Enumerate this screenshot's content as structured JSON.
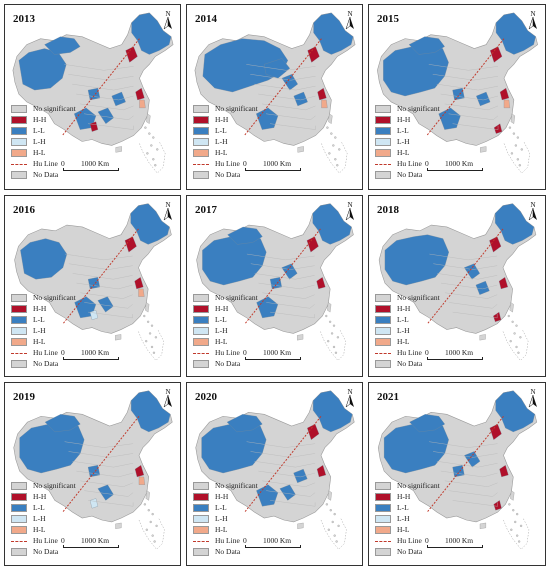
{
  "colors": {
    "no_significant": "#d4d4d4",
    "hh": "#b0102a",
    "ll": "#3a7fc0",
    "lh": "#cfe6f3",
    "hl": "#f1a98a",
    "hu_line": "#c0392b",
    "no_data": "#d4d4d4"
  },
  "legend": {
    "no_significant": "No significant",
    "hh": "H-H",
    "ll": "L-L",
    "lh": "L-H",
    "hl": "H-L",
    "hu_line": "Hu Line",
    "no_data": "No Data"
  },
  "scale": {
    "zero": "0",
    "label": "1000 Km"
  },
  "north_label": "N",
  "panels": [
    {
      "year": "2013",
      "icon": "map-of-china"
    },
    {
      "year": "2014",
      "icon": "map-of-china"
    },
    {
      "year": "2015",
      "icon": "map-of-china"
    },
    {
      "year": "2016",
      "icon": "map-of-china"
    },
    {
      "year": "2017",
      "icon": "map-of-china"
    },
    {
      "year": "2018",
      "icon": "map-of-china"
    },
    {
      "year": "2019",
      "icon": "map-of-china"
    },
    {
      "year": "2020",
      "icon": "map-of-china"
    },
    {
      "year": "2021",
      "icon": "map-of-china"
    }
  ]
}
